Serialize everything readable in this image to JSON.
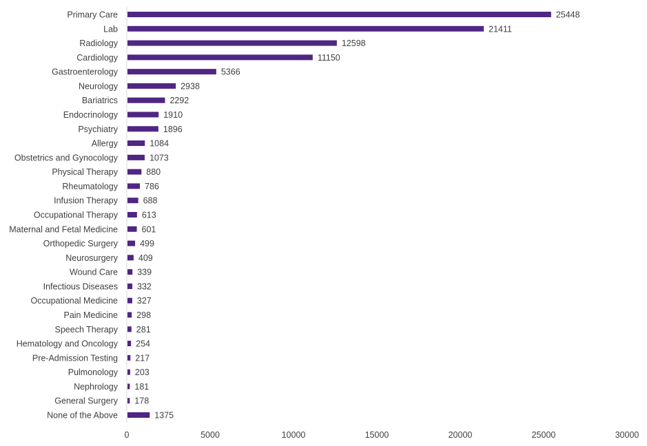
{
  "chart_data": {
    "type": "bar",
    "orientation": "horizontal",
    "title": "",
    "xlabel": "",
    "ylabel": "",
    "xlim": [
      0,
      30000
    ],
    "xticks": [
      0,
      5000,
      10000,
      15000,
      20000,
      25000,
      30000
    ],
    "grid": false,
    "bar_color": "#4f2683",
    "categories": [
      "Primary Care",
      "Lab",
      "Radiology",
      "Cardiology",
      "Gastroenterology",
      "Neurology",
      "Bariatrics",
      "Endocrinology",
      "Psychiatry",
      "Allergy",
      "Obstetrics and Gynocology",
      "Physical Therapy",
      "Rheumatology",
      "Infusion Therapy",
      "Occupational Therapy",
      "Maternal and Fetal Medicine",
      "Orthopedic Surgery",
      "Neurosurgery",
      "Wound Care",
      "Infectious Diseases",
      "Occupational Medicine",
      "Pain Medicine",
      "Speech Therapy",
      "Hematology and Oncology",
      "Pre-Admission Testing",
      "Pulmonology",
      "Nephrology",
      "General Surgery",
      "None of the Above"
    ],
    "values": [
      25448,
      21411,
      12598,
      11150,
      5366,
      2938,
      2292,
      1910,
      1896,
      1084,
      1073,
      880,
      786,
      688,
      613,
      601,
      499,
      409,
      339,
      332,
      327,
      298,
      281,
      254,
      217,
      203,
      181,
      178,
      1375
    ]
  }
}
